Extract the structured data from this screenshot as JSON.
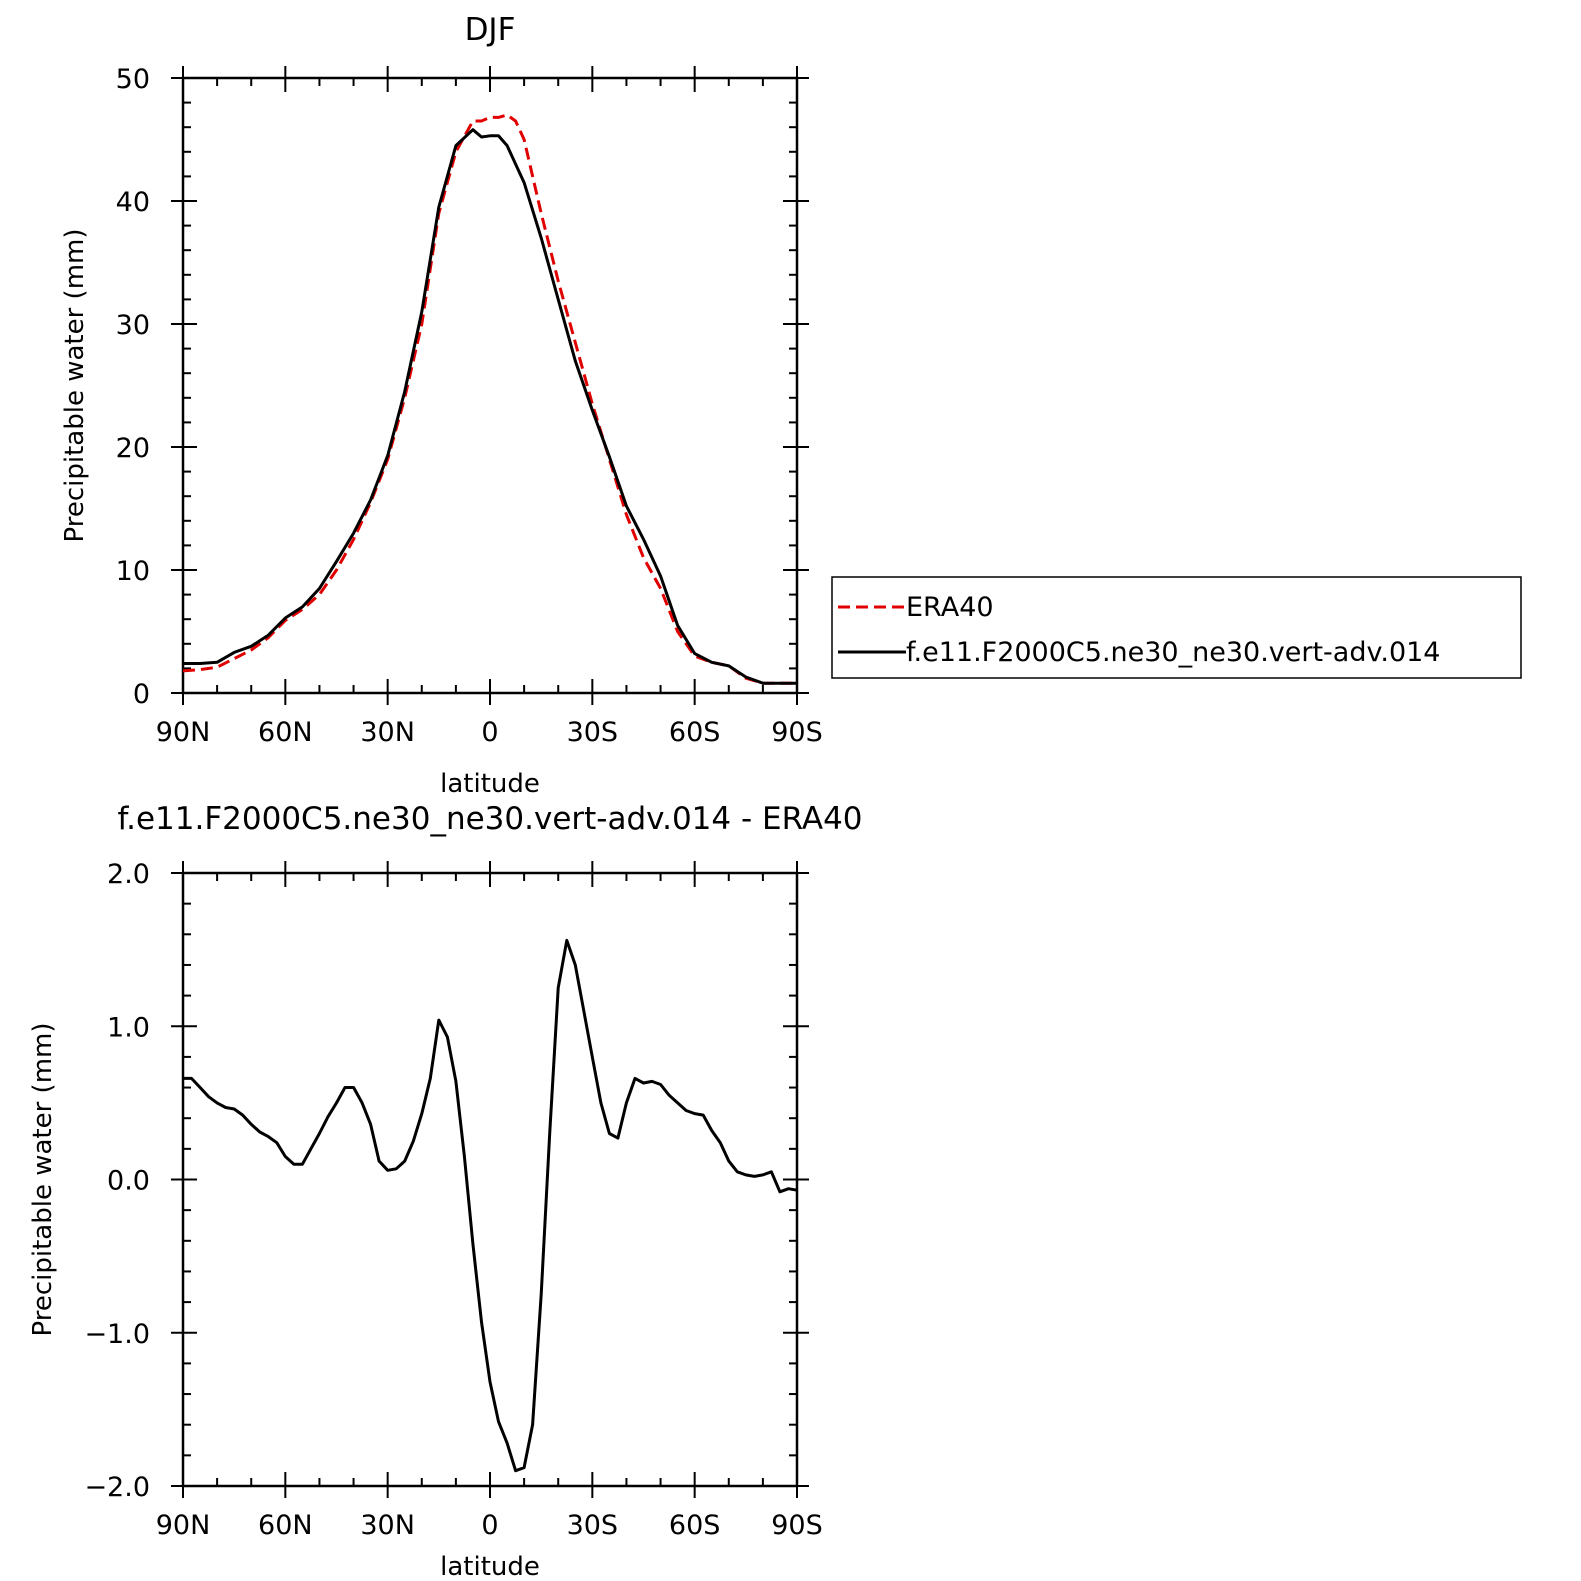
{
  "chart_data": [
    {
      "type": "line",
      "title": "DJF",
      "xlabel": "latitude",
      "ylabel": "Precipitable water (mm)",
      "xlim": [
        90,
        -90
      ],
      "ylim": [
        0,
        50
      ],
      "x_ticks": [
        90,
        60,
        30,
        0,
        -30,
        -60,
        -90
      ],
      "x_tick_labels": [
        "90N",
        "60N",
        "30N",
        "0",
        "30S",
        "60S",
        "90S"
      ],
      "y_ticks": [
        0,
        10,
        20,
        30,
        40,
        50
      ],
      "y_tick_labels": [
        "0",
        "10",
        "20",
        "30",
        "40",
        "50"
      ],
      "legend_position": "right",
      "series": [
        {
          "name": "ERA40",
          "color": "#e00000",
          "dash": "dashed",
          "x": [
            90,
            85,
            80,
            75,
            70,
            65,
            60,
            55,
            50,
            45,
            40,
            35,
            30,
            25,
            20,
            15,
            10,
            5,
            2.5,
            0,
            -2.5,
            -5,
            -7.5,
            -10,
            -15,
            -20,
            -25,
            -30,
            -35,
            -40,
            -45,
            -50,
            -55,
            -60,
            -65,
            -70,
            -75,
            -80,
            -85,
            -90
          ],
          "values": [
            1.8,
            1.9,
            2.1,
            2.8,
            3.5,
            4.5,
            5.9,
            6.8,
            8.0,
            10.0,
            12.5,
            15.5,
            19.0,
            24.0,
            30.0,
            39.0,
            44.0,
            46.5,
            46.5,
            46.8,
            46.8,
            47.0,
            46.5,
            45.0,
            39.0,
            33.5,
            28.5,
            23.5,
            19.0,
            14.5,
            11.0,
            8.5,
            5.0,
            3.0,
            2.5,
            2.2,
            1.2,
            0.8,
            0.8,
            0.8
          ]
        },
        {
          "name": "f.e11.F2000C5.ne30_ne30.vert-adv.014",
          "color": "#000000",
          "dash": "solid",
          "x": [
            90,
            85,
            80,
            75,
            70,
            65,
            60,
            55,
            50,
            45,
            40,
            35,
            30,
            25,
            20,
            15,
            10,
            5,
            2.5,
            0,
            -2.5,
            -5,
            -7.5,
            -10,
            -15,
            -20,
            -25,
            -30,
            -35,
            -40,
            -45,
            -50,
            -55,
            -60,
            -65,
            -70,
            -75,
            -80,
            -85,
            -90
          ],
          "values": [
            2.4,
            2.4,
            2.5,
            3.3,
            3.8,
            4.7,
            6.1,
            7.0,
            8.5,
            10.7,
            13.0,
            15.7,
            19.3,
            24.5,
            31.0,
            39.5,
            44.5,
            45.8,
            45.2,
            45.3,
            45.3,
            44.5,
            43.0,
            41.5,
            37.0,
            32.0,
            27.0,
            23.0,
            19.2,
            15.2,
            12.5,
            9.5,
            5.5,
            3.2,
            2.5,
            2.2,
            1.3,
            0.8,
            0.8,
            0.8
          ]
        }
      ]
    },
    {
      "type": "line",
      "title": "f.e11.F2000C5.ne30_ne30.vert-adv.014 - ERA40",
      "xlabel": "latitude",
      "ylabel": "Precipitable water (mm)",
      "xlim": [
        90,
        -90
      ],
      "ylim": [
        -2.0,
        2.0
      ],
      "x_ticks": [
        90,
        60,
        30,
        0,
        -30,
        -60,
        -90
      ],
      "x_tick_labels": [
        "90N",
        "60N",
        "30N",
        "0",
        "30S",
        "60S",
        "90S"
      ],
      "y_ticks": [
        -2.0,
        -1.0,
        0.0,
        1.0,
        2.0
      ],
      "y_tick_labels": [
        "−2.0",
        "−1.0",
        "0.0",
        "1.0",
        "2.0"
      ],
      "series": [
        {
          "color": "#000000",
          "dash": "solid",
          "x": [
            90,
            87.5,
            85,
            82.5,
            80,
            77.5,
            75,
            72.5,
            70,
            67.5,
            65,
            62.5,
            60,
            57.5,
            55,
            52.5,
            50,
            47.5,
            45,
            42.5,
            40,
            37.5,
            35,
            32.5,
            30,
            27.5,
            25,
            22.5,
            20,
            17.5,
            15,
            12.5,
            10,
            7.5,
            5,
            2.5,
            0,
            -2.5,
            -5,
            -7.5,
            -10,
            -12.5,
            -15,
            -17.5,
            -20,
            -22.5,
            -25,
            -27.5,
            -30,
            -32.5,
            -35,
            -37.5,
            -40,
            -42.5,
            -45,
            -47.5,
            -50,
            -52.5,
            -55,
            -57.5,
            -60,
            -62.5,
            -65,
            -67.5,
            -70,
            -72.5,
            -75,
            -77.5,
            -80,
            -82.5,
            -85,
            -87.5,
            -90
          ],
          "values": [
            0.66,
            0.66,
            0.6,
            0.54,
            0.5,
            0.47,
            0.46,
            0.42,
            0.36,
            0.31,
            0.28,
            0.24,
            0.15,
            0.1,
            0.1,
            0.2,
            0.3,
            0.41,
            0.5,
            0.6,
            0.6,
            0.5,
            0.36,
            0.12,
            0.06,
            0.07,
            0.12,
            0.25,
            0.43,
            0.66,
            1.04,
            0.93,
            0.64,
            0.15,
            -0.42,
            -0.93,
            -1.32,
            -1.58,
            -1.72,
            -1.9,
            -1.88,
            -1.6,
            -0.75,
            0.3,
            1.25,
            1.56,
            1.4,
            1.1,
            0.8,
            0.5,
            0.3,
            0.27,
            0.5,
            0.66,
            0.63,
            0.64,
            0.62,
            0.55,
            0.5,
            0.45,
            0.43,
            0.42,
            0.32,
            0.24,
            0.12,
            0.05,
            0.03,
            0.02,
            0.03,
            0.05,
            -0.08,
            -0.06,
            -0.07
          ]
        }
      ]
    }
  ]
}
